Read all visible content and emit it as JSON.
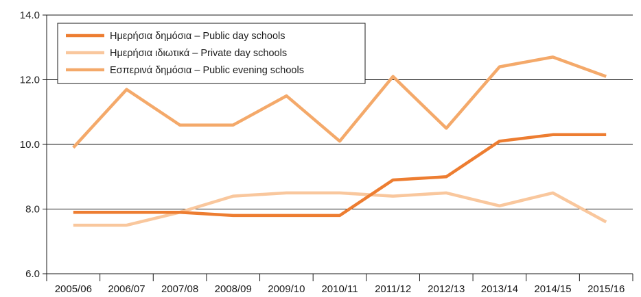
{
  "chart_data": {
    "type": "line",
    "title": "",
    "xlabel": "",
    "ylabel": "",
    "categories": [
      "2005/06",
      "2006/07",
      "2007/08",
      "2008/09",
      "2009/10",
      "2010/11",
      "2011/12",
      "2012/13",
      "2013/14",
      "2014/15",
      "2015/16"
    ],
    "ylim": [
      6.0,
      14.0
    ],
    "yticks": [
      "6.0",
      "8.0",
      "10.0",
      "12.0",
      "14.0"
    ],
    "grid": "horizontal",
    "legend_position": "top-left",
    "series": [
      {
        "name": "Ημερήσια δημόσια – Public day schools",
        "color": "#ed7d31",
        "values": [
          7.9,
          7.9,
          7.9,
          7.8,
          7.8,
          7.8,
          8.9,
          9.0,
          10.1,
          10.3,
          10.3
        ]
      },
      {
        "name": "Ημερήσια ιδιωτικά – Private day schools",
        "color": "#f9c79d",
        "values": [
          7.5,
          7.5,
          7.9,
          8.4,
          8.5,
          8.5,
          8.4,
          8.5,
          8.1,
          8.5,
          7.6
        ]
      },
      {
        "name": "Εσπερινά δημόσια – Public evening schools",
        "color": "#f4a96a",
        "values": [
          9.9,
          11.7,
          10.6,
          10.6,
          11.5,
          10.1,
          12.1,
          10.5,
          12.4,
          12.7,
          12.1
        ]
      }
    ]
  }
}
